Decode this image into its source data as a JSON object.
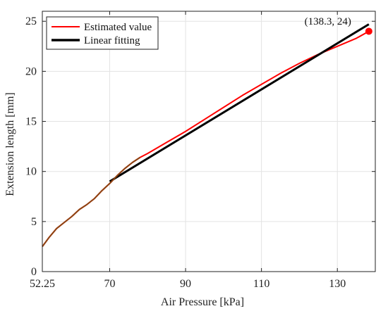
{
  "chart_data": {
    "type": "line",
    "title": "",
    "xlabel": "Air Pressure [kPa]",
    "ylabel": "Extension length [mm]",
    "xlim": [
      52.25,
      140
    ],
    "ylim": [
      0,
      26
    ],
    "xticks": [
      52.25,
      70,
      90,
      110,
      130
    ],
    "xtick_labels": [
      "52.25",
      "70",
      "90",
      "110",
      "130"
    ],
    "yticks": [
      0,
      5,
      10,
      15,
      20,
      25
    ],
    "ytick_labels": [
      "0",
      "5",
      "10",
      "15",
      "20",
      "25"
    ],
    "grid": true,
    "legend_position": "top-left",
    "series": [
      {
        "name": "Estimated value",
        "color": "#ff0000",
        "x": [
          52.25,
          54,
          56,
          58,
          60,
          62,
          64,
          66,
          68,
          70,
          72,
          74,
          76,
          78,
          80,
          85,
          90,
          95,
          100,
          105,
          110,
          115,
          120,
          125,
          130,
          135,
          138.3
        ],
        "y": [
          2.5,
          3.4,
          4.3,
          4.9,
          5.5,
          6.2,
          6.7,
          7.3,
          8.1,
          8.8,
          9.6,
          10.3,
          10.9,
          11.4,
          11.8,
          12.9,
          14.0,
          15.2,
          16.4,
          17.6,
          18.7,
          19.8,
          20.8,
          21.7,
          22.5,
          23.3,
          24.0
        ]
      },
      {
        "name": "Linear fitting",
        "color": "#000000",
        "x": [
          70,
          138.3
        ],
        "y": [
          9.0,
          24.7
        ]
      }
    ],
    "overlap_color": "#8b4513",
    "overlap_until_x": 78,
    "marker": {
      "x": 138.3,
      "y": 24.0,
      "color": "#ff0000"
    },
    "annotation": {
      "text": "(138.3, 24)",
      "x": 127.5,
      "y": 25.0
    }
  }
}
